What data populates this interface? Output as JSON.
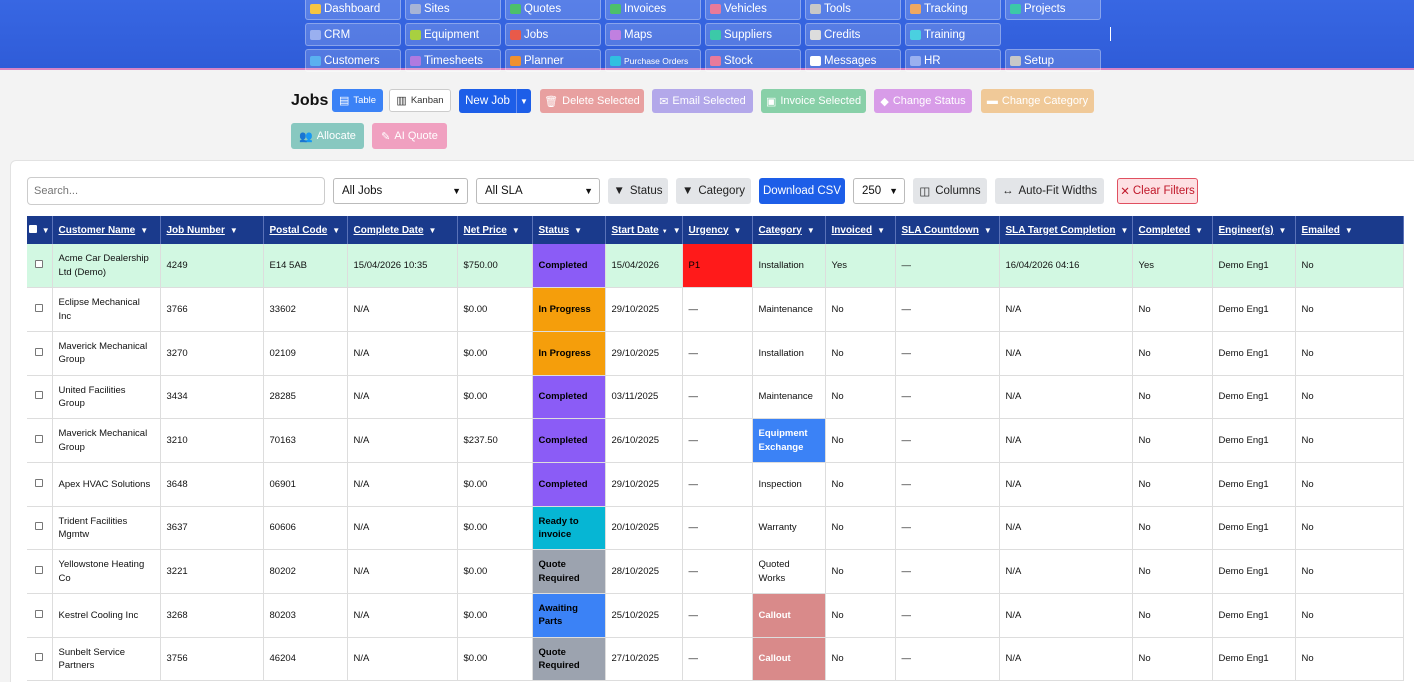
{
  "nav": [
    {
      "label": "Dashboard",
      "icon": "dashboard-icon",
      "color": "#f5c542"
    },
    {
      "label": "Sites",
      "icon": "building-icon",
      "color": "#a8b4d6"
    },
    {
      "label": "Quotes",
      "icon": "quote-doc-icon",
      "color": "#4cc06a"
    },
    {
      "label": "Invoices",
      "icon": "invoice-icon",
      "color": "#4cc06a"
    },
    {
      "label": "Vehicles",
      "icon": "truck-icon",
      "color": "#e87a9b"
    },
    {
      "label": "Tools",
      "icon": "toolbox-icon",
      "color": "#c8c8c8"
    },
    {
      "label": "Tracking",
      "icon": "tracking-icon",
      "color": "#f0a860"
    },
    {
      "label": "Projects",
      "icon": "projects-icon",
      "color": "#3cc9a8"
    },
    {
      "label": "CRM",
      "icon": "people-icon",
      "color": "#9ab0f0"
    },
    {
      "label": "Equipment",
      "icon": "gears-icon",
      "color": "#a8d040"
    },
    {
      "label": "Jobs",
      "icon": "briefcase-icon",
      "color": "#e85a4a"
    },
    {
      "label": "Maps",
      "icon": "map-pin-icon",
      "color": "#c080e0"
    },
    {
      "label": "Suppliers",
      "icon": "handshake-icon",
      "color": "#3cc9a8"
    },
    {
      "label": "Credits",
      "icon": "undo-icon",
      "color": "#dddddd"
    },
    {
      "label": "Training",
      "icon": "graduation-cap-icon",
      "color": "#4ad0e0"
    },
    {
      "label": "",
      "icon": "",
      "color": ""
    },
    {
      "label": "Customers",
      "icon": "contact-card-icon",
      "color": "#5ab0f0"
    },
    {
      "label": "Timesheets",
      "icon": "clock-icon",
      "color": "#b07ae0"
    },
    {
      "label": "Planner",
      "icon": "calendar-icon",
      "color": "#f09030"
    },
    {
      "label": "Purchase Orders",
      "icon": "cart-icon",
      "color": "#30c0e0",
      "small": true
    },
    {
      "label": "Stock",
      "icon": "box-icon",
      "color": "#e87a9b"
    },
    {
      "label": "Messages",
      "icon": "chat-icon",
      "color": "#ffffff"
    },
    {
      "label": "HR",
      "icon": "team-icon",
      "color": "#9ab0f0"
    },
    {
      "label": "Setup",
      "icon": "wrench-icon",
      "color": "#c8c8c8"
    }
  ],
  "page": {
    "title": "Jobs"
  },
  "toolbar": {
    "table": "Table",
    "kanban": "Kanban",
    "new_job": "New Job",
    "delete": "Delete Selected",
    "email": "Email Selected",
    "invoice": "Invoice Selected",
    "change_status": "Change Status",
    "change_category": "Change Category",
    "allocate": "Allocate",
    "ai_quote": "AI Quote"
  },
  "filters": {
    "search_placeholder": "Search...",
    "jobs": "All Jobs",
    "sla": "All SLA",
    "status": "Status",
    "category": "Category",
    "download": "Download CSV",
    "page_size": "250",
    "columns": "Columns",
    "autofit": "Auto-Fit Widths",
    "clear": "Clear Filters"
  },
  "columns": [
    "Customer Name",
    "Job Number",
    "Postal Code",
    "Complete Date",
    "Net Price",
    "Status",
    "Start Date",
    "Urgency",
    "Category",
    "Invoiced",
    "SLA Countdown",
    "SLA Target Completion",
    "Completed",
    "Engineer(s)",
    "Emailed"
  ],
  "colors": {
    "Completed": "#8b5cf6",
    "In Progress": "#f59e0b",
    "Ready to invoice": "#06b6d4",
    "Quote Required": "#9ca3af",
    "Awaiting Parts": "#3b82f6",
    "P1": "#ff1a1a",
    "Equipment Exchange": "#3b82f6",
    "Callout": "#d98a8a"
  },
  "rows": [
    {
      "customer": "Acme Car Dealership Ltd (Demo)",
      "job": "4249",
      "postal": "E14 5AB",
      "complete_date": "15/04/2026 10:35",
      "net_price": "$750.00",
      "status": "Completed",
      "start": "15/04/2026",
      "urgency": "P1",
      "category": "Installation",
      "invoiced": "Yes",
      "sla_countdown": "—",
      "sla_target": "16/04/2026 04:16",
      "completed": "Yes",
      "engineer": "Demo Eng1",
      "emailed": "No",
      "highlight": true
    },
    {
      "customer": "Eclipse Mechanical Inc",
      "job": "3766",
      "postal": "33602",
      "complete_date": "N/A",
      "net_price": "$0.00",
      "status": "In Progress",
      "start": "29/10/2025",
      "urgency": "—",
      "category": "Maintenance",
      "invoiced": "No",
      "sla_countdown": "—",
      "sla_target": "N/A",
      "completed": "No",
      "engineer": "Demo Eng1",
      "emailed": "No"
    },
    {
      "customer": "Maverick Mechanical Group",
      "job": "3270",
      "postal": "02109",
      "complete_date": "N/A",
      "net_price": "$0.00",
      "status": "In Progress",
      "start": "29/10/2025",
      "urgency": "—",
      "category": "Installation",
      "invoiced": "No",
      "sla_countdown": "—",
      "sla_target": "N/A",
      "completed": "No",
      "engineer": "Demo Eng1",
      "emailed": "No"
    },
    {
      "customer": "United Facilities Group",
      "job": "3434",
      "postal": "28285",
      "complete_date": "N/A",
      "net_price": "$0.00",
      "status": "Completed",
      "start": "03/11/2025",
      "urgency": "—",
      "category": "Maintenance",
      "invoiced": "No",
      "sla_countdown": "—",
      "sla_target": "N/A",
      "completed": "No",
      "engineer": "Demo Eng1",
      "emailed": "No"
    },
    {
      "customer": "Maverick Mechanical Group",
      "job": "3210",
      "postal": "70163",
      "complete_date": "N/A",
      "net_price": "$237.50",
      "status": "Completed",
      "start": "26/10/2025",
      "urgency": "—",
      "category": "Equipment Exchange",
      "invoiced": "No",
      "sla_countdown": "—",
      "sla_target": "N/A",
      "completed": "No",
      "engineer": "Demo Eng1",
      "emailed": "No"
    },
    {
      "customer": "Apex HVAC Solutions",
      "job": "3648",
      "postal": "06901",
      "complete_date": "N/A",
      "net_price": "$0.00",
      "status": "Completed",
      "start": "29/10/2025",
      "urgency": "—",
      "category": "Inspection",
      "invoiced": "No",
      "sla_countdown": "—",
      "sla_target": "N/A",
      "completed": "No",
      "engineer": "Demo Eng1",
      "emailed": "No"
    },
    {
      "customer": "Trident Facilities Mgmtw",
      "job": "3637",
      "postal": "60606",
      "complete_date": "N/A",
      "net_price": "$0.00",
      "status": "Ready to invoice",
      "start": "20/10/2025",
      "urgency": "—",
      "category": "Warranty",
      "invoiced": "No",
      "sla_countdown": "—",
      "sla_target": "N/A",
      "completed": "No",
      "engineer": "Demo Eng1",
      "emailed": "No"
    },
    {
      "customer": "Yellowstone Heating Co",
      "job": "3221",
      "postal": "80202",
      "complete_date": "N/A",
      "net_price": "$0.00",
      "status": "Quote Required",
      "start": "28/10/2025",
      "urgency": "—",
      "category": "Quoted Works",
      "invoiced": "No",
      "sla_countdown": "—",
      "sla_target": "N/A",
      "completed": "No",
      "engineer": "Demo Eng1",
      "emailed": "No"
    },
    {
      "customer": "Kestrel Cooling Inc",
      "job": "3268",
      "postal": "80203",
      "complete_date": "N/A",
      "net_price": "$0.00",
      "status": "Awaiting Parts",
      "start": "25/10/2025",
      "urgency": "—",
      "category": "Callout",
      "invoiced": "No",
      "sla_countdown": "—",
      "sla_target": "N/A",
      "completed": "No",
      "engineer": "Demo Eng1",
      "emailed": "No"
    },
    {
      "customer": "Sunbelt Service Partners",
      "job": "3756",
      "postal": "46204",
      "complete_date": "N/A",
      "net_price": "$0.00",
      "status": "Quote Required",
      "start": "27/10/2025",
      "urgency": "—",
      "category": "Callout",
      "invoiced": "No",
      "sla_countdown": "—",
      "sla_target": "N/A",
      "completed": "No",
      "engineer": "Demo Eng1",
      "emailed": "No"
    }
  ]
}
